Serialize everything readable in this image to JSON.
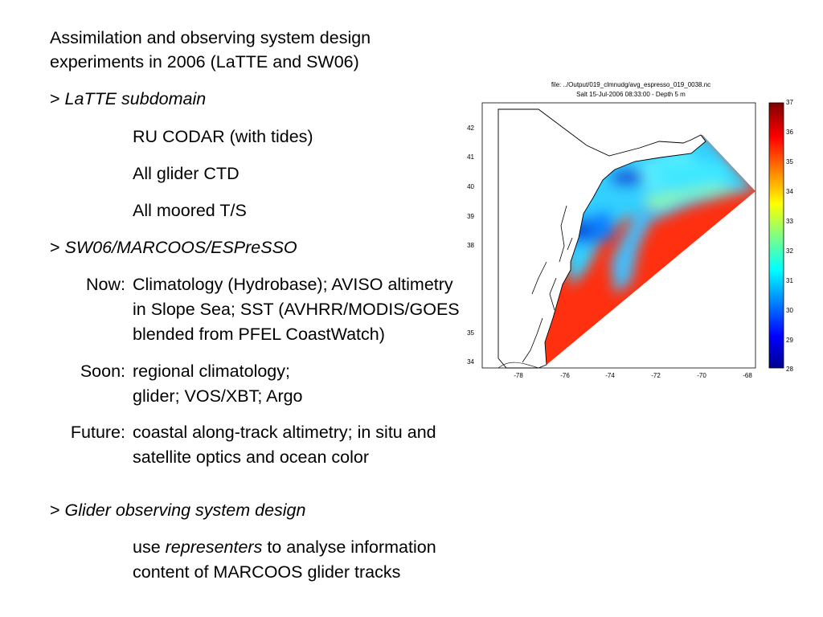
{
  "slide": {
    "title_line1": "Assimilation and observing system design",
    "title_line2": "experiments in 2006 (LaTTE and SW06)",
    "s1_prefix": "> ",
    "s1_heading": "LaTTE subdomain",
    "s1_items": [
      "RU CODAR (with tides)",
      "All glider CTD",
      "All moored T/S"
    ],
    "s2_prefix": "> ",
    "s2_heading": "SW06/MARCOOS/ESPreSSO",
    "now_label": "Now:",
    "now_lines": [
      "Climatology (Hydrobase); AVISO altimetry",
      "in Slope Sea; SST (AVHRR/MODIS/GOES",
      "blended from PFEL CoastWatch)"
    ],
    "soon_label": "Soon:",
    "soon_lines": [
      "regional climatology;",
      "glider; VOS/XBT; Argo"
    ],
    "future_label": "Future:",
    "future_lines": [
      "coastal along-track altimetry; in situ and",
      "satellite optics and ocean color"
    ],
    "s3_prefix": "> ",
    "s3_heading": "Glider observing system design",
    "s3_line1_a": "use ",
    "s3_line1_em": "representers",
    "s3_line1_b": " to analyse information",
    "s3_line2": "content of MARCOOS glider tracks"
  },
  "figure": {
    "file_line": "file: ../Output/019_clmnudg/avg_espresso_019_0038.nc",
    "caption_line": "Salt 15-Jul-2006 08:33:00  - Depth 5 m",
    "lat_ticks": [
      "42",
      "41",
      "40",
      "39",
      "38",
      "35",
      "34"
    ],
    "lon_ticks": [
      "-78",
      "-76",
      "-74",
      "-72",
      "-70",
      "-68"
    ],
    "colorbar_ticks": [
      "37",
      "36",
      "35",
      "34",
      "33",
      "32",
      "31",
      "30",
      "29",
      "28"
    ]
  }
}
